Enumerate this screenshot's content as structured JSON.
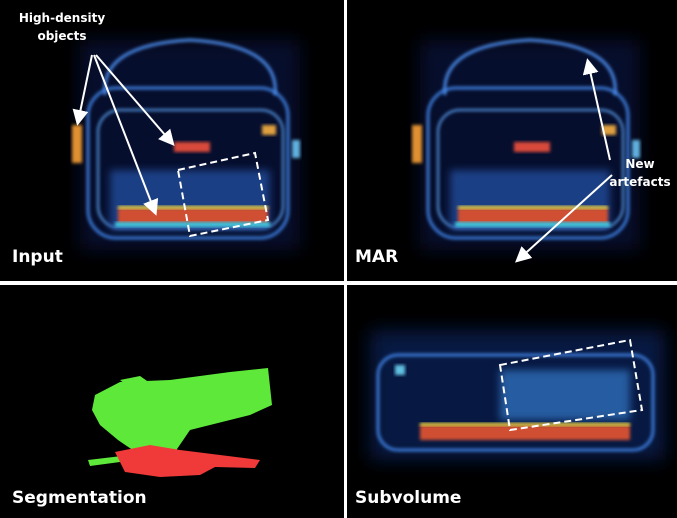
{
  "panels": [
    {
      "label": "Input",
      "annotation": [
        "High-density",
        "objects"
      ]
    },
    {
      "label": "MAR",
      "annotation": [
        "New",
        "artefacts"
      ]
    },
    {
      "label": "Segmentation"
    },
    {
      "label": "Subvolume"
    }
  ]
}
